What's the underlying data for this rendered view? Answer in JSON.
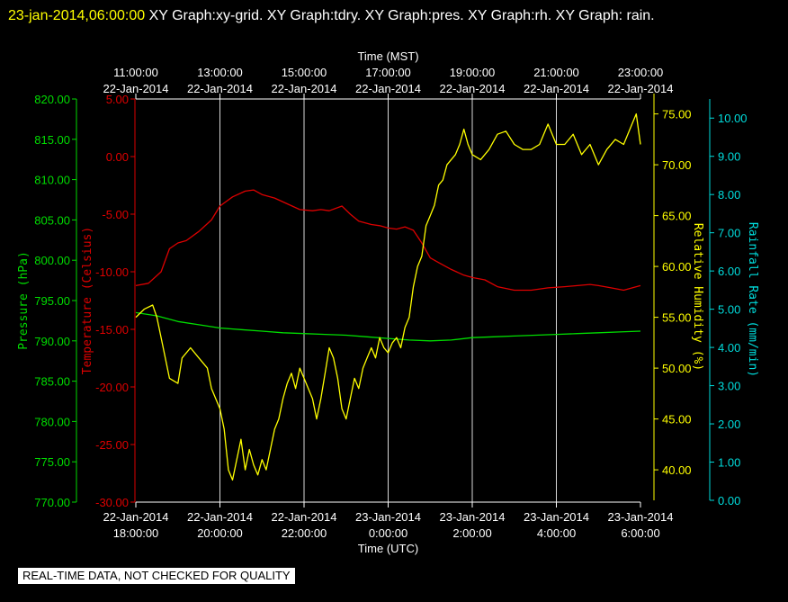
{
  "header": {
    "timestamp": "23-jan-2014,06:00:00",
    "description": "XY Graph:xy-grid.  XY Graph:tdry.  XY Graph:pres.  XY Graph:rh.  XY Graph: rain."
  },
  "notice": "REAL-TIME DATA, NOT CHECKED FOR QUALITY",
  "chart_data": {
    "type": "line",
    "grid": "vertical",
    "x_top": {
      "label": "Time (MST)",
      "ticks": [
        {
          "time": "11:00:00",
          "date": "22-Jan-2014"
        },
        {
          "time": "13:00:00",
          "date": "22-Jan-2014"
        },
        {
          "time": "15:00:00",
          "date": "22-Jan-2014"
        },
        {
          "time": "17:00:00",
          "date": "22-Jan-2014"
        },
        {
          "time": "19:00:00",
          "date": "22-Jan-2014"
        },
        {
          "time": "21:00:00",
          "date": "22-Jan-2014"
        },
        {
          "time": "23:00:00",
          "date": "22-Jan-2014"
        }
      ]
    },
    "x_bottom": {
      "label": "Time (UTC)",
      "ticks": [
        {
          "date": "22-Jan-2014",
          "time": "18:00:00"
        },
        {
          "date": "22-Jan-2014",
          "time": "20:00:00"
        },
        {
          "date": "22-Jan-2014",
          "time": "22:00:00"
        },
        {
          "date": "23-Jan-2014",
          "time": "0:00:00"
        },
        {
          "date": "23-Jan-2014",
          "time": "2:00:00"
        },
        {
          "date": "23-Jan-2014",
          "time": "4:00:00"
        },
        {
          "date": "23-Jan-2014",
          "time": "6:00:00"
        }
      ]
    },
    "x_range_hours_utc": [
      0,
      12
    ],
    "axes": {
      "pressure": {
        "label": "Pressure (hPa)",
        "color": "#00dd00",
        "range": [
          770,
          820
        ],
        "ticks": [
          "770.00",
          "775.00",
          "780.00",
          "785.00",
          "790.00",
          "795.00",
          "800.00",
          "805.00",
          "810.00",
          "815.00",
          "820.00"
        ]
      },
      "temperature": {
        "label": "Temperature (Celsius)",
        "color": "#dd0000",
        "range": [
          -30,
          5
        ],
        "ticks": [
          "-30.00",
          "-25.00",
          "-20.00",
          "-15.00",
          "-10.00",
          "-5.00",
          "0.00",
          "5.00"
        ]
      },
      "humidity": {
        "label": "Relative Humidity (%)",
        "color": "#ffff00",
        "range": [
          37,
          77
        ],
        "ticks": [
          "40.00",
          "45.00",
          "50.00",
          "55.00",
          "60.00",
          "65.00",
          "70.00",
          "75.00"
        ]
      },
      "rain": {
        "label": "Rainfall Rate (mm/min)",
        "color": "#00dddd",
        "range": [
          0,
          10.5
        ],
        "ticks": [
          "0.00",
          "1.00",
          "2.00",
          "3.00",
          "4.00",
          "5.00",
          "6.00",
          "7.00",
          "8.00",
          "9.00",
          "10.00"
        ]
      }
    },
    "series": [
      {
        "axis": "temperature",
        "color": "#dd0000",
        "points": [
          [
            0,
            -11.2
          ],
          [
            0.3,
            -11
          ],
          [
            0.6,
            -10
          ],
          [
            0.8,
            -8
          ],
          [
            1,
            -7.5
          ],
          [
            1.2,
            -7.3
          ],
          [
            1.5,
            -6.5
          ],
          [
            1.8,
            -5.5
          ],
          [
            2,
            -4.3
          ],
          [
            2.3,
            -3.5
          ],
          [
            2.6,
            -3
          ],
          [
            2.8,
            -2.9
          ],
          [
            3,
            -3.3
          ],
          [
            3.3,
            -3.6
          ],
          [
            3.6,
            -4.1
          ],
          [
            3.9,
            -4.6
          ],
          [
            4.2,
            -4.7
          ],
          [
            4.4,
            -4.6
          ],
          [
            4.6,
            -4.7
          ],
          [
            4.9,
            -4.3
          ],
          [
            5.1,
            -5
          ],
          [
            5.3,
            -5.6
          ],
          [
            5.6,
            -5.9
          ],
          [
            5.8,
            -6
          ],
          [
            6,
            -6.2
          ],
          [
            6.2,
            -6.3
          ],
          [
            6.4,
            -6.1
          ],
          [
            6.6,
            -6.4
          ],
          [
            6.8,
            -7.5
          ],
          [
            7,
            -8.8
          ],
          [
            7.2,
            -9.2
          ],
          [
            7.5,
            -9.8
          ],
          [
            7.8,
            -10.3
          ],
          [
            8,
            -10.5
          ],
          [
            8.3,
            -10.7
          ],
          [
            8.6,
            -11.3
          ],
          [
            9,
            -11.6
          ],
          [
            9.4,
            -11.6
          ],
          [
            9.8,
            -11.4
          ],
          [
            10.2,
            -11.3
          ],
          [
            10.5,
            -11.2
          ],
          [
            10.8,
            -11.1
          ],
          [
            11,
            -11.2
          ],
          [
            11.3,
            -11.4
          ],
          [
            11.6,
            -11.6
          ],
          [
            12,
            -11.2
          ]
        ]
      },
      {
        "axis": "pressure",
        "color": "#00dd00",
        "points": [
          [
            0,
            793.5
          ],
          [
            0.5,
            793.1
          ],
          [
            1,
            792.4
          ],
          [
            1.5,
            792
          ],
          [
            2,
            791.6
          ],
          [
            2.5,
            791.4
          ],
          [
            3,
            791.2
          ],
          [
            3.5,
            791
          ],
          [
            4,
            790.9
          ],
          [
            4.5,
            790.8
          ],
          [
            5,
            790.7
          ],
          [
            5.5,
            790.5
          ],
          [
            6,
            790.3
          ],
          [
            6.5,
            790.1
          ],
          [
            7,
            790
          ],
          [
            7.5,
            790.1
          ],
          [
            8,
            790.4
          ],
          [
            8.5,
            790.5
          ],
          [
            9,
            790.6
          ],
          [
            9.5,
            790.7
          ],
          [
            10,
            790.8
          ],
          [
            10.5,
            790.9
          ],
          [
            11,
            791
          ],
          [
            11.5,
            791.1
          ],
          [
            12,
            791.2
          ]
        ]
      },
      {
        "axis": "humidity",
        "color": "#ffff00",
        "points": [
          [
            0,
            55
          ],
          [
            0.2,
            55.8
          ],
          [
            0.4,
            56.2
          ],
          [
            0.5,
            55
          ],
          [
            0.6,
            53
          ],
          [
            0.8,
            49
          ],
          [
            1,
            48.5
          ],
          [
            1.1,
            51
          ],
          [
            1.3,
            52
          ],
          [
            1.5,
            51
          ],
          [
            1.7,
            50
          ],
          [
            1.8,
            48
          ],
          [
            2,
            46
          ],
          [
            2.1,
            44
          ],
          [
            2.2,
            40
          ],
          [
            2.3,
            39
          ],
          [
            2.4,
            41
          ],
          [
            2.5,
            43
          ],
          [
            2.6,
            40
          ],
          [
            2.7,
            42
          ],
          [
            2.8,
            40.5
          ],
          [
            2.9,
            39.5
          ],
          [
            3,
            41
          ],
          [
            3.1,
            40
          ],
          [
            3.2,
            42
          ],
          [
            3.3,
            44
          ],
          [
            3.4,
            45
          ],
          [
            3.5,
            47
          ],
          [
            3.6,
            48.5
          ],
          [
            3.7,
            49.5
          ],
          [
            3.8,
            48
          ],
          [
            3.9,
            50
          ],
          [
            4,
            49
          ],
          [
            4.2,
            47
          ],
          [
            4.3,
            45
          ],
          [
            4.4,
            47
          ],
          [
            4.5,
            49.5
          ],
          [
            4.6,
            52
          ],
          [
            4.7,
            51
          ],
          [
            4.8,
            49
          ],
          [
            4.9,
            46
          ],
          [
            5,
            45
          ],
          [
            5.1,
            47
          ],
          [
            5.2,
            49
          ],
          [
            5.3,
            48
          ],
          [
            5.4,
            50
          ],
          [
            5.5,
            51
          ],
          [
            5.6,
            52
          ],
          [
            5.7,
            51
          ],
          [
            5.8,
            53
          ],
          [
            5.9,
            52
          ],
          [
            6,
            51.5
          ],
          [
            6.1,
            52.5
          ],
          [
            6.2,
            53
          ],
          [
            6.3,
            52
          ],
          [
            6.4,
            54
          ],
          [
            6.5,
            55
          ],
          [
            6.6,
            58
          ],
          [
            6.7,
            60
          ],
          [
            6.8,
            61
          ],
          [
            6.9,
            64
          ],
          [
            7,
            65
          ],
          [
            7.1,
            66
          ],
          [
            7.2,
            68
          ],
          [
            7.3,
            68.5
          ],
          [
            7.4,
            70
          ],
          [
            7.5,
            70.5
          ],
          [
            7.6,
            71
          ],
          [
            7.7,
            72
          ],
          [
            7.8,
            73.5
          ],
          [
            7.9,
            72
          ],
          [
            8,
            71
          ],
          [
            8.2,
            70.5
          ],
          [
            8.4,
            71.5
          ],
          [
            8.6,
            73
          ],
          [
            8.8,
            73.3
          ],
          [
            9,
            72
          ],
          [
            9.2,
            71.5
          ],
          [
            9.4,
            71.5
          ],
          [
            9.6,
            72
          ],
          [
            9.8,
            74
          ],
          [
            10,
            72
          ],
          [
            10.2,
            72
          ],
          [
            10.4,
            73
          ],
          [
            10.6,
            71
          ],
          [
            10.8,
            72
          ],
          [
            11,
            70
          ],
          [
            11.2,
            71.5
          ],
          [
            11.4,
            72.5
          ],
          [
            11.6,
            72
          ],
          [
            11.8,
            74
          ],
          [
            11.9,
            75
          ],
          [
            12,
            72
          ]
        ]
      },
      {
        "axis": "rain",
        "color": "#00dddd",
        "points": []
      }
    ]
  }
}
